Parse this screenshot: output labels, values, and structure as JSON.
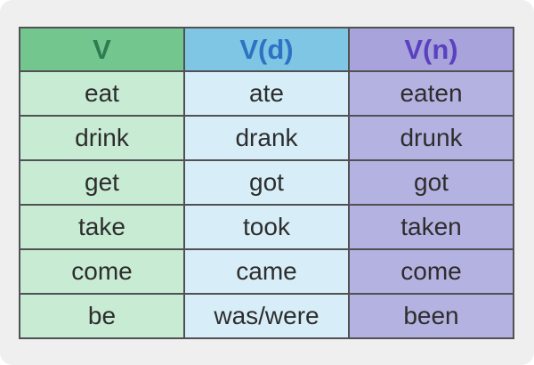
{
  "page": {
    "background": "#ffffff",
    "card_background": "#f0efef",
    "border_color": "#515155",
    "body_text_color": "#2d2d2d"
  },
  "table": {
    "columns": [
      {
        "label": "V",
        "header_bg": "#74c68f",
        "header_color": "#2f7c52",
        "cell_bg": "#c8ebd4"
      },
      {
        "label": "V(d)",
        "header_bg": "#7fc6e4",
        "header_color": "#2e72c4",
        "cell_bg": "#d7eef8"
      },
      {
        "label": "V(n)",
        "header_bg": "#a9a3dc",
        "header_color": "#5a41c0",
        "cell_bg": "#b4b2e0"
      }
    ],
    "rows": [
      [
        "eat",
        "ate",
        "eaten"
      ],
      [
        "drink",
        "drank",
        "drunk"
      ],
      [
        "get",
        "got",
        "got"
      ],
      [
        "take",
        "took",
        "taken"
      ],
      [
        "come",
        "came",
        "come"
      ],
      [
        "be",
        "was/were",
        "been"
      ]
    ]
  }
}
